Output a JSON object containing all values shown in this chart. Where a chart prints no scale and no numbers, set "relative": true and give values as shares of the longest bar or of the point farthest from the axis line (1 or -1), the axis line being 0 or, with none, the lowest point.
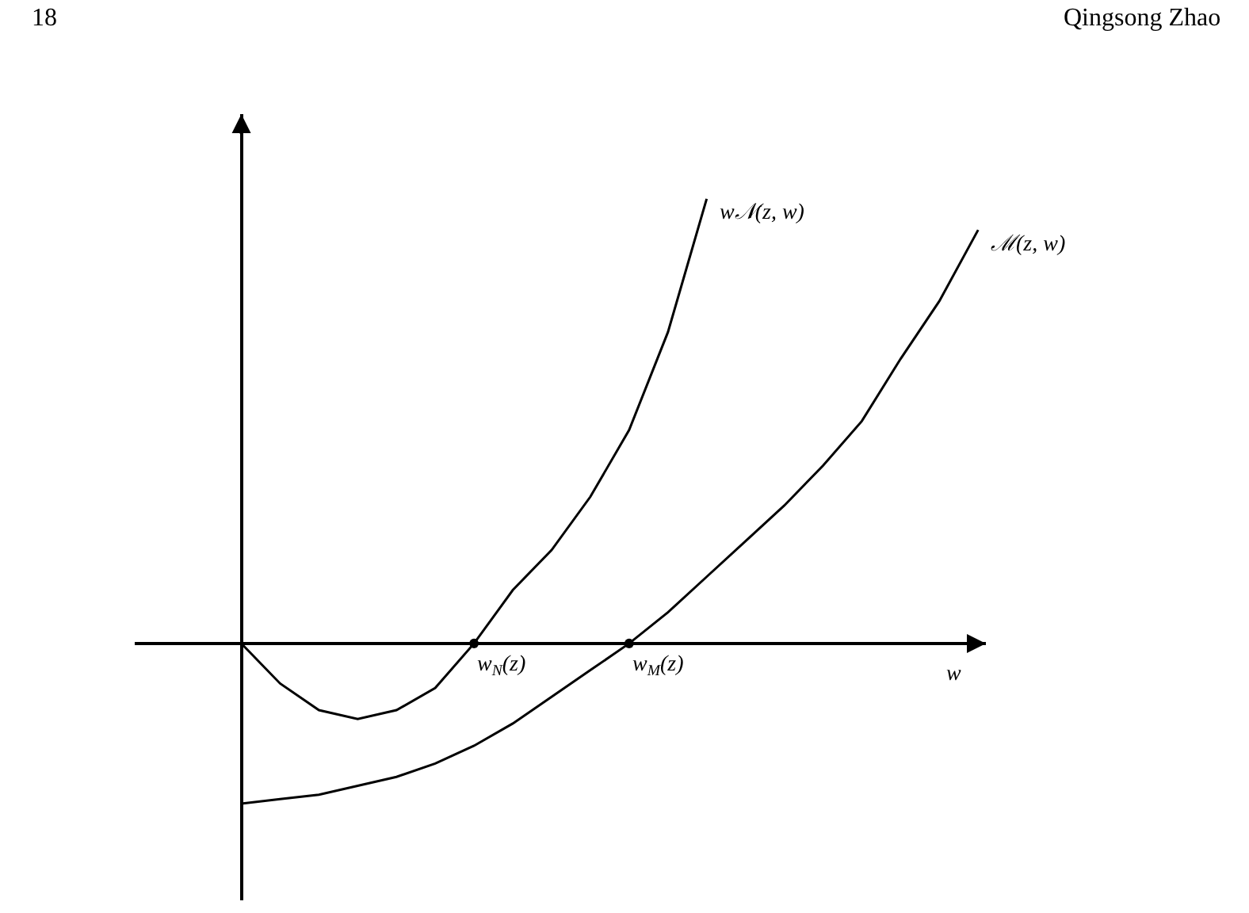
{
  "chart_data": {
    "type": "line",
    "relative": true,
    "xlabel": "w",
    "categories": [
      null,
      null,
      null,
      null,
      null,
      null,
      null,
      null,
      null,
      null,
      null,
      null,
      null,
      null,
      null,
      null,
      null,
      null,
      null,
      null
    ],
    "series": [
      {
        "name": "w𝒩(z, w)",
        "color": "#000000",
        "values": [
          0,
          -0.09,
          -0.15,
          -0.17,
          -0.15,
          -0.1,
          0,
          0.12,
          0.21,
          0.33,
          0.48,
          0.7,
          1.0,
          null,
          null,
          null,
          null,
          null,
          null,
          null
        ]
      },
      {
        "name": "ℳ(z, w)",
        "color": "#000000",
        "values": [
          -0.36,
          -0.35,
          -0.34,
          -0.32,
          -0.3,
          -0.27,
          -0.23,
          -0.18,
          -0.12,
          -0.06,
          0,
          0.07,
          0.15,
          0.23,
          0.31,
          0.4,
          0.5,
          0.64,
          0.77,
          0.93
        ]
      }
    ],
    "annotations": [
      "18",
      "Qingsong Zhao",
      "w$_{N}$(z)",
      "w$_{M}$(z)"
    ],
    "legend": false,
    "line_style": "solid"
  }
}
